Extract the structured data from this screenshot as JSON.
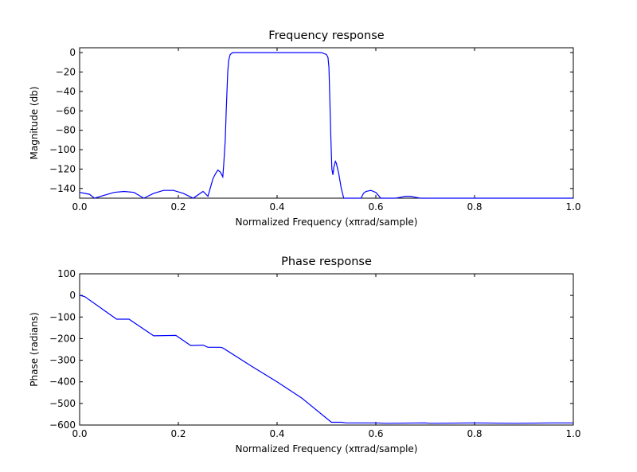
{
  "chart_data": [
    {
      "type": "line",
      "title": "Frequency response",
      "xlabel": "Normalized Frequency (xπrad/sample)",
      "ylabel": "Magnitude (db)",
      "xlim": [
        0.0,
        1.0
      ],
      "ylim": [
        -150,
        5
      ],
      "xticks": [
        0.0,
        0.2,
        0.4,
        0.6,
        0.8,
        1.0
      ],
      "xtick_labels": [
        "0.0",
        "0.2",
        "0.4",
        "0.6",
        "0.8",
        "1.0"
      ],
      "yticks": [
        0,
        -20,
        -40,
        -60,
        -80,
        -100,
        -120,
        -140
      ],
      "ytick_labels": [
        "0",
        "−20",
        "−40",
        "−60",
        "−80",
        "−100",
        "−120",
        "−140"
      ],
      "grid": false,
      "line_color": "#0000ff",
      "series": [
        {
          "x": [
            0.0,
            0.01,
            0.02,
            0.03,
            0.05,
            0.07,
            0.09,
            0.11,
            0.13,
            0.15,
            0.17,
            0.19,
            0.21,
            0.23,
            0.25,
            0.26,
            0.27,
            0.275,
            0.28,
            0.285,
            0.29,
            0.292,
            0.295,
            0.297,
            0.3,
            0.302,
            0.305,
            0.31,
            0.35,
            0.4,
            0.45,
            0.49,
            0.5,
            0.503,
            0.505,
            0.507,
            0.509,
            0.511,
            0.513,
            0.515,
            0.518,
            0.52,
            0.525,
            0.53,
            0.535,
            0.54,
            0.55,
            0.56,
            0.57,
            0.575,
            0.58,
            0.59,
            0.6,
            0.605,
            0.61,
            0.62,
            0.63,
            0.64,
            0.65,
            0.66,
            0.67,
            0.68,
            0.69,
            0.7,
            0.75,
            0.8,
            0.9,
            1.0
          ],
          "y": [
            -144,
            -145,
            -146,
            -150,
            -147,
            -144,
            -143,
            -144,
            -150,
            -145,
            -142,
            -142,
            -145,
            -150,
            -143,
            -148,
            -130,
            -125,
            -121,
            -123,
            -128,
            -115,
            -90,
            -60,
            -20,
            -8,
            -2,
            0,
            0,
            0,
            0,
            0,
            -2,
            -5,
            -15,
            -50,
            -90,
            -120,
            -126,
            -118,
            -112,
            -114,
            -125,
            -140,
            -150,
            -150,
            -150,
            -150,
            -150,
            -145,
            -143,
            -142,
            -144,
            -147,
            -150,
            -150,
            -150,
            -150,
            -149,
            -148,
            -148,
            -149,
            -150,
            -150,
            -150,
            -150,
            -150,
            -150
          ]
        }
      ]
    },
    {
      "type": "line",
      "title": "Phase response",
      "xlabel": "Normalized Frequency (xπrad/sample)",
      "ylabel": "Phase (radians)",
      "xlim": [
        0.0,
        1.0
      ],
      "ylim": [
        -600,
        100
      ],
      "xticks": [
        0.0,
        0.2,
        0.4,
        0.6,
        0.8,
        1.0
      ],
      "xtick_labels": [
        "0.0",
        "0.2",
        "0.4",
        "0.6",
        "0.8",
        "1.0"
      ],
      "yticks": [
        100,
        0,
        -100,
        -200,
        -300,
        -400,
        -500,
        -600
      ],
      "ytick_labels": [
        "100",
        "0",
        "−100",
        "−200",
        "−300",
        "−400",
        "−500",
        "−600"
      ],
      "grid": false,
      "line_color": "#0000ff",
      "series": [
        {
          "x": [
            0.0,
            0.01,
            0.075,
            0.1,
            0.15,
            0.195,
            0.225,
            0.25,
            0.26,
            0.285,
            0.29,
            0.35,
            0.4,
            0.45,
            0.51,
            0.53,
            0.54,
            0.6,
            0.62,
            0.7,
            0.71,
            0.8,
            0.88,
            0.96,
            1.0
          ],
          "y": [
            0,
            -5,
            -110,
            -110,
            -187,
            -185,
            -232,
            -230,
            -240,
            -240,
            -243,
            -330,
            -400,
            -475,
            -587,
            -587,
            -590,
            -590,
            -592,
            -590,
            -592,
            -590,
            -592,
            -590,
            -590
          ]
        }
      ]
    }
  ]
}
